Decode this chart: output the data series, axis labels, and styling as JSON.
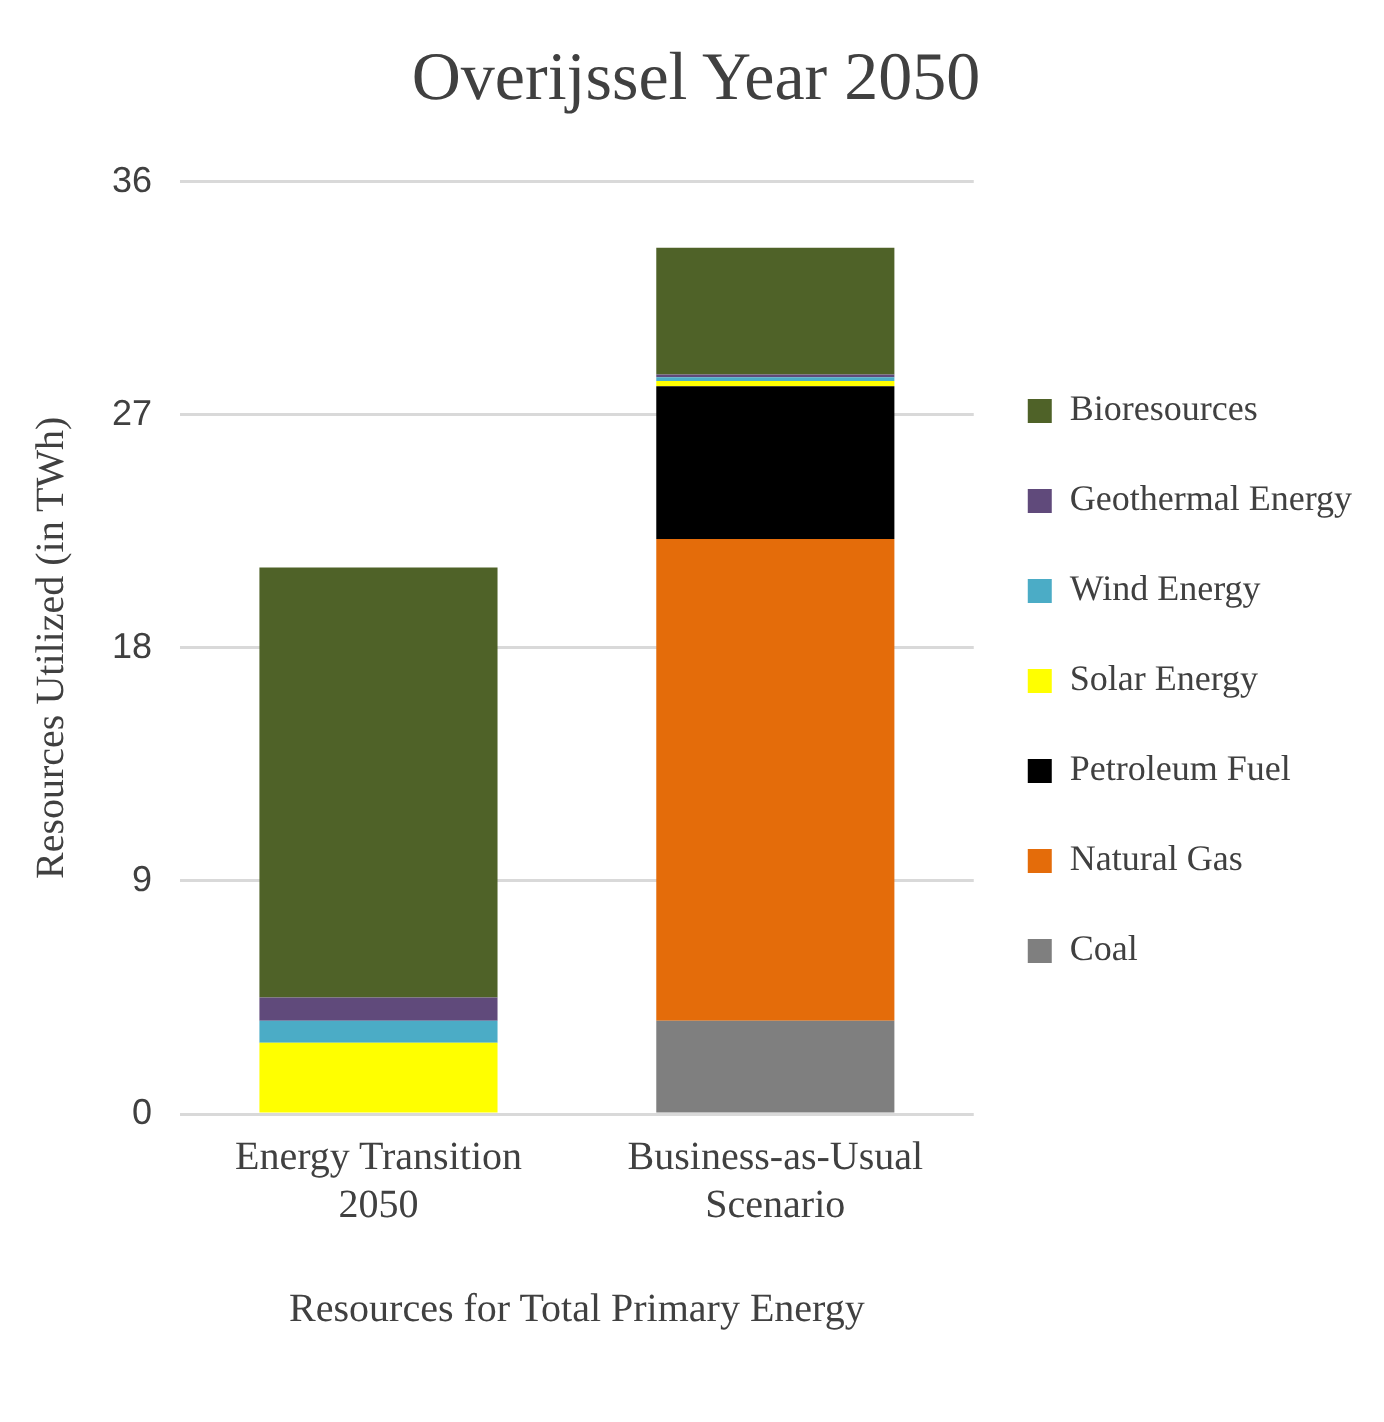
{
  "chart_data": {
    "type": "bar",
    "title": "Overijssel Year 2050",
    "xlabel": "Resources for Total Primary Energy",
    "ylabel": "Resources Utilized (in TWh)",
    "categories": [
      "Energy Transition 2050",
      "Business-as-Usual Scenario"
    ],
    "stacked": true,
    "ylim": [
      0,
      36
    ],
    "yticks": [
      0,
      9,
      18,
      27,
      36
    ],
    "grid": "y",
    "legend": "right",
    "series": [
      {
        "name": "Coal",
        "color": "#7f7f7f",
        "values": [
          0,
          3.6
        ]
      },
      {
        "name": "Natural Gas",
        "color": "#e46c0a",
        "values": [
          0,
          18.6
        ]
      },
      {
        "name": "Petroleum Fuel",
        "color": "#000000",
        "values": [
          0,
          5.9
        ]
      },
      {
        "name": "Solar Energy",
        "color": "#ffff00",
        "values": [
          2.75,
          0.2
        ]
      },
      {
        "name": "Wind Energy",
        "color": "#4bacc6",
        "values": [
          0.85,
          0.15
        ]
      },
      {
        "name": "Geothermal Energy",
        "color": "#604a7b",
        "values": [
          0.9,
          0.1
        ]
      },
      {
        "name": "Bioresources",
        "color": "#4f6228",
        "values": [
          16.6,
          4.9
        ]
      }
    ]
  }
}
